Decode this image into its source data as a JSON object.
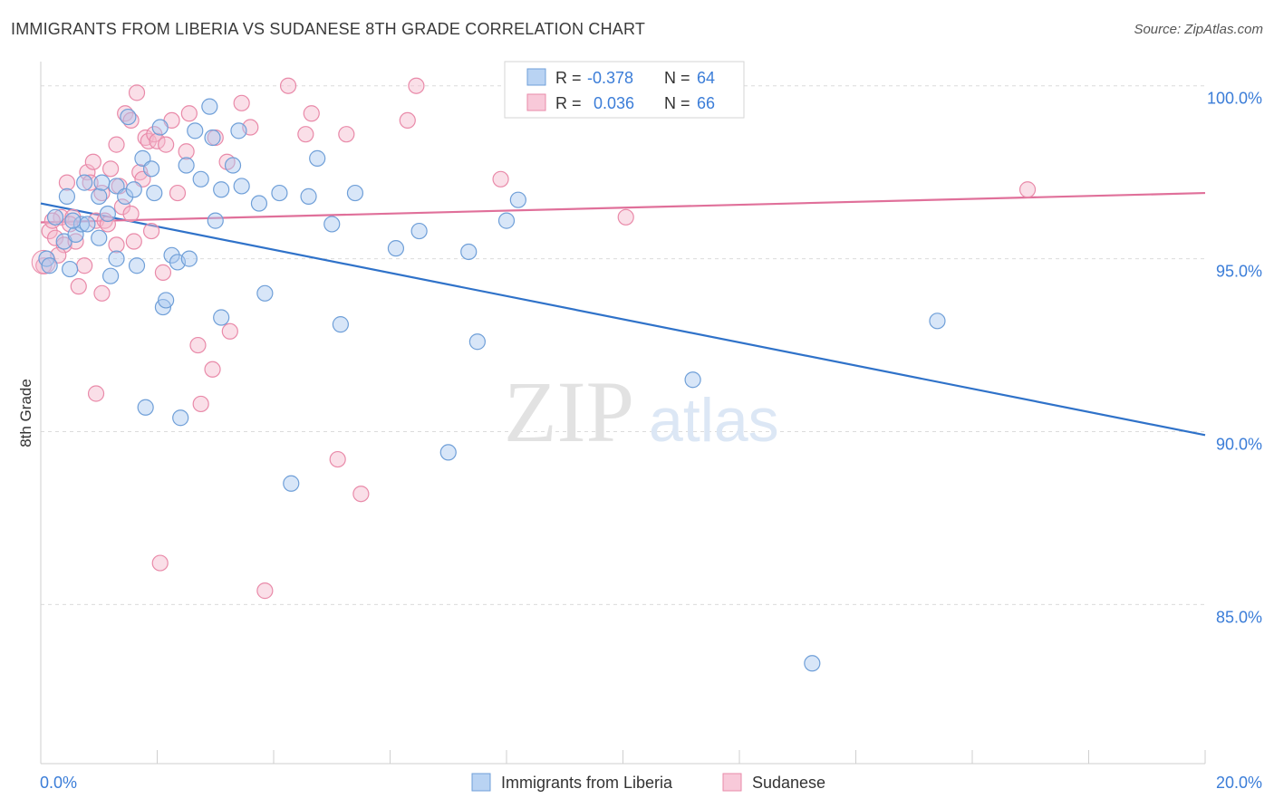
{
  "header": {
    "title": "IMMIGRANTS FROM LIBERIA VS SUDANESE 8TH GRADE CORRELATION CHART",
    "source": "Source: ZipAtlas.com"
  },
  "watermark": {
    "zip": "ZIP",
    "atlas": "atlas"
  },
  "legend_top": [
    {
      "r_label": "R =",
      "r_value": "-0.378",
      "n_label": "N =",
      "n_value": "64"
    },
    {
      "r_label": "R =",
      "r_value": "0.036",
      "n_label": "N =",
      "n_value": "66"
    }
  ],
  "colors": {
    "blue_fill": "#a9c8ef",
    "blue_stroke": "#6f9fd8",
    "blue_line": "#2f72c9",
    "pink_fill": "#f5b8cc",
    "pink_stroke": "#e98aa9",
    "pink_line": "#e0709a",
    "value_text": "#3b7dd8",
    "grid": "#dcdcdc"
  },
  "chart_data": {
    "type": "scatter",
    "title": "IMMIGRANTS FROM LIBERIA VS SUDANESE 8TH GRADE CORRELATION CHART",
    "xlabel": "",
    "ylabel": "8th Grade",
    "xlim": [
      0,
      20
    ],
    "ylim": [
      80.4,
      100.7
    ],
    "x_tick_labels": [
      "0.0%",
      "20.0%"
    ],
    "y_ticks": [
      85,
      90,
      95,
      100
    ],
    "y_tick_labels": [
      "85.0%",
      "90.0%",
      "95.0%",
      "100.0%"
    ],
    "grid": "horizontal dashed",
    "legend_position": "bottom-center",
    "series": [
      {
        "name": "Immigrants from Liberia",
        "color": "blue",
        "r": -0.378,
        "n": 64,
        "trend": {
          "x": [
            0,
            20
          ],
          "y": [
            96.6,
            89.9
          ]
        },
        "points": [
          [
            0.1,
            95.0
          ],
          [
            0.25,
            96.2
          ],
          [
            0.4,
            95.5
          ],
          [
            0.45,
            96.8
          ],
          [
            0.5,
            94.7
          ],
          [
            0.6,
            95.7
          ],
          [
            0.7,
            96.0
          ],
          [
            0.75,
            97.2
          ],
          [
            0.8,
            96.0
          ],
          [
            1.0,
            96.8
          ],
          [
            1.05,
            97.2
          ],
          [
            1.15,
            96.3
          ],
          [
            1.2,
            94.5
          ],
          [
            1.3,
            95.0
          ],
          [
            1.3,
            97.1
          ],
          [
            1.45,
            96.8
          ],
          [
            1.5,
            99.1
          ],
          [
            1.6,
            97.0
          ],
          [
            1.65,
            94.8
          ],
          [
            1.75,
            97.9
          ],
          [
            1.8,
            90.7
          ],
          [
            1.9,
            97.6
          ],
          [
            1.95,
            96.9
          ],
          [
            2.05,
            98.8
          ],
          [
            2.1,
            93.6
          ],
          [
            2.15,
            93.8
          ],
          [
            2.25,
            95.1
          ],
          [
            2.35,
            94.9
          ],
          [
            2.4,
            90.4
          ],
          [
            2.5,
            97.7
          ],
          [
            2.55,
            95.0
          ],
          [
            2.65,
            98.7
          ],
          [
            2.75,
            97.3
          ],
          [
            2.9,
            99.4
          ],
          [
            2.95,
            98.5
          ],
          [
            3.0,
            96.1
          ],
          [
            3.1,
            93.3
          ],
          [
            3.1,
            97.0
          ],
          [
            3.3,
            97.7
          ],
          [
            3.4,
            98.7
          ],
          [
            3.45,
            97.1
          ],
          [
            3.75,
            96.6
          ],
          [
            3.85,
            94.0
          ],
          [
            4.1,
            96.9
          ],
          [
            4.3,
            88.5
          ],
          [
            4.6,
            96.8
          ],
          [
            4.75,
            97.9
          ],
          [
            5.0,
            96.0
          ],
          [
            5.15,
            93.1
          ],
          [
            5.4,
            96.9
          ],
          [
            6.1,
            95.3
          ],
          [
            6.5,
            95.8
          ],
          [
            7.0,
            89.4
          ],
          [
            7.35,
            95.2
          ],
          [
            7.5,
            92.6
          ],
          [
            8.0,
            96.1
          ],
          [
            8.2,
            96.7
          ],
          [
            9.4,
            100.0
          ],
          [
            11.2,
            91.5
          ],
          [
            13.25,
            83.3
          ],
          [
            15.4,
            93.2
          ],
          [
            0.15,
            94.8
          ],
          [
            0.55,
            96.1
          ],
          [
            1.0,
            95.6
          ]
        ]
      },
      {
        "name": "Sudanese",
        "color": "pink",
        "r": 0.036,
        "n": 66,
        "trend": {
          "x": [
            0,
            20
          ],
          "y": [
            96.05,
            96.9
          ]
        },
        "points": [
          [
            0.05,
            94.8
          ],
          [
            0.15,
            95.8
          ],
          [
            0.25,
            95.6
          ],
          [
            0.35,
            96.2
          ],
          [
            0.4,
            95.4
          ],
          [
            0.45,
            97.2
          ],
          [
            0.55,
            96.2
          ],
          [
            0.6,
            95.5
          ],
          [
            0.65,
            94.2
          ],
          [
            0.75,
            94.8
          ],
          [
            0.8,
            97.5
          ],
          [
            0.85,
            97.2
          ],
          [
            0.9,
            97.8
          ],
          [
            0.95,
            96.1
          ],
          [
            0.95,
            91.1
          ],
          [
            1.05,
            96.9
          ],
          [
            1.05,
            94.0
          ],
          [
            1.1,
            96.1
          ],
          [
            1.2,
            97.6
          ],
          [
            1.3,
            98.3
          ],
          [
            1.3,
            95.4
          ],
          [
            1.35,
            97.1
          ],
          [
            1.4,
            96.5
          ],
          [
            1.45,
            99.2
          ],
          [
            1.55,
            99.0
          ],
          [
            1.55,
            96.3
          ],
          [
            1.6,
            95.5
          ],
          [
            1.65,
            99.8
          ],
          [
            1.7,
            97.5
          ],
          [
            1.75,
            97.3
          ],
          [
            1.8,
            98.5
          ],
          [
            1.85,
            98.4
          ],
          [
            1.9,
            95.8
          ],
          [
            1.95,
            98.6
          ],
          [
            2.0,
            98.4
          ],
          [
            2.05,
            86.2
          ],
          [
            2.1,
            94.6
          ],
          [
            2.15,
            98.3
          ],
          [
            2.25,
            99.0
          ],
          [
            2.35,
            96.9
          ],
          [
            2.5,
            98.1
          ],
          [
            2.55,
            99.2
          ],
          [
            2.7,
            92.5
          ],
          [
            2.75,
            90.8
          ],
          [
            2.95,
            91.8
          ],
          [
            3.0,
            98.5
          ],
          [
            3.2,
            97.8
          ],
          [
            3.25,
            92.9
          ],
          [
            3.45,
            99.5
          ],
          [
            3.6,
            98.8
          ],
          [
            3.85,
            85.4
          ],
          [
            4.25,
            100.0
          ],
          [
            4.55,
            98.6
          ],
          [
            4.65,
            99.2
          ],
          [
            5.1,
            89.2
          ],
          [
            5.25,
            98.6
          ],
          [
            5.5,
            88.2
          ],
          [
            6.3,
            99.0
          ],
          [
            6.45,
            100.0
          ],
          [
            7.9,
            97.3
          ],
          [
            10.05,
            96.2
          ],
          [
            16.95,
            97.0
          ],
          [
            0.2,
            96.1
          ],
          [
            0.5,
            96.0
          ],
          [
            1.15,
            96.0
          ],
          [
            0.3,
            95.1
          ]
        ]
      }
    ]
  }
}
